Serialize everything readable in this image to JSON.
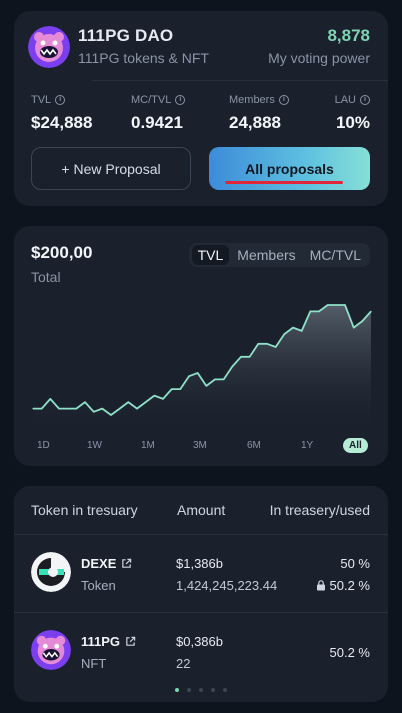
{
  "dao": {
    "name": "111PG DAO",
    "subtitle": "111PG tokens & NFT",
    "voting_power": "8,878",
    "voting_power_label": "My voting power",
    "stats": [
      {
        "label": "TVL",
        "value": "$24,888"
      },
      {
        "label": "MC/TVL",
        "value": "0.9421"
      },
      {
        "label": "Members",
        "value": "24,888"
      },
      {
        "label": "LAU",
        "value": "10%"
      }
    ],
    "new_proposal_label": "+ New Proposal",
    "all_proposals_label": "All proposals"
  },
  "chart": {
    "value": "$200,00",
    "label": "Total",
    "tabs": [
      "TVL",
      "Members",
      "MC/TVL"
    ],
    "active_tab": "TVL",
    "ranges": [
      "1D",
      "1W",
      "1M",
      "3M",
      "6M",
      "1Y",
      "All"
    ],
    "active_range": "All",
    "colors": {
      "line": "#8ee0c8",
      "fill_top": "#5b6470",
      "fill_bottom": "#1a212c"
    }
  },
  "chart_data": {
    "type": "area",
    "x": [
      1,
      2,
      3,
      4,
      5,
      6,
      7,
      8,
      9,
      10,
      11,
      12,
      13,
      14,
      15,
      16,
      17,
      18,
      19,
      20,
      21,
      22,
      23,
      24,
      25,
      26,
      27,
      28,
      29,
      30,
      31,
      32,
      33,
      34,
      35,
      36,
      37,
      38,
      39,
      40
    ],
    "values": [
      6,
      6,
      9,
      6,
      6,
      6,
      8,
      5,
      6,
      4,
      6,
      8,
      6,
      8,
      10,
      9,
      12,
      12,
      16,
      17,
      13,
      15,
      15,
      19,
      22,
      22,
      26,
      26,
      25,
      29,
      31,
      30,
      36,
      36,
      38,
      38,
      38,
      31,
      33,
      36
    ],
    "title": "",
    "xlabel": "",
    "ylabel": "",
    "ylim": [
      0,
      42
    ],
    "grid": false
  },
  "treasury": {
    "headers": [
      "Token in tresuary",
      "Amount",
      "In treasery/used"
    ],
    "rows": [
      {
        "name": "DEXE",
        "type": "Token",
        "amount_usd": "$1,386b",
        "amount": "1,424,245,223.44",
        "pct": "50 %",
        "used": "50.2 %"
      },
      {
        "name": "111PG",
        "type": "NFT",
        "amount_usd": "$0,386b",
        "amount": "22",
        "pct": "50.2 %"
      }
    ]
  }
}
